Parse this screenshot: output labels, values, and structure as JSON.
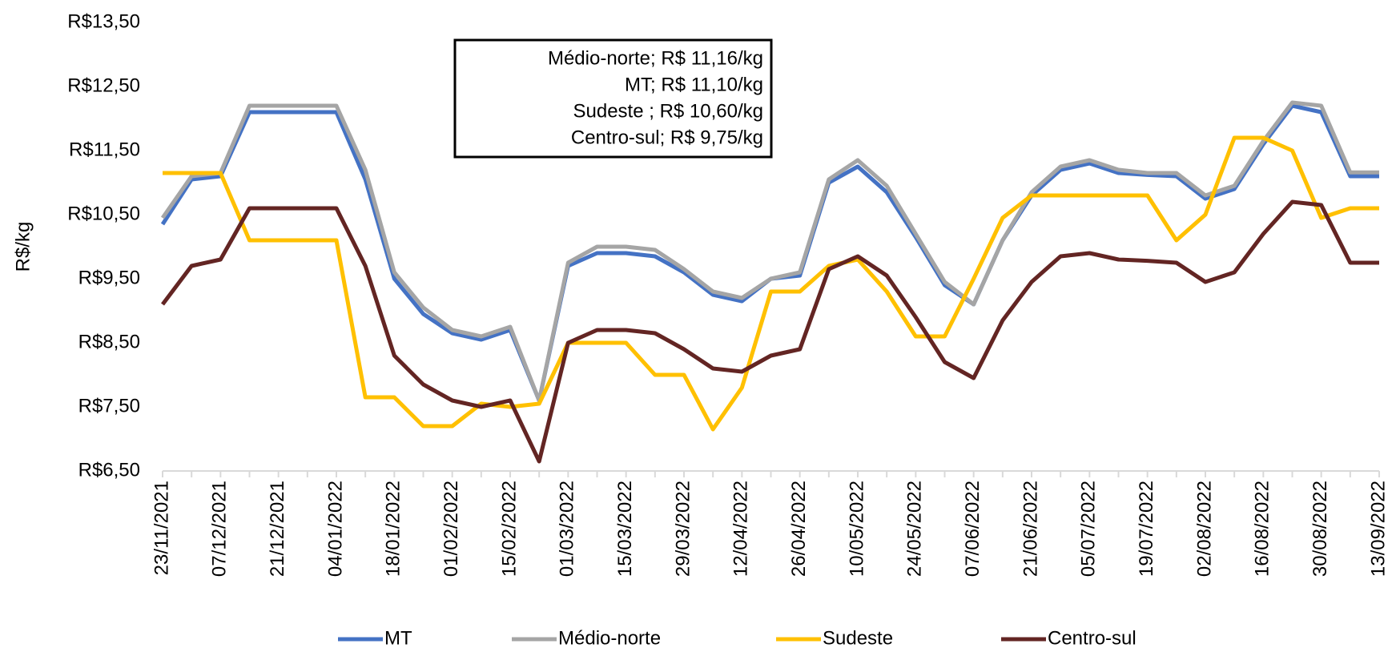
{
  "chart_data": {
    "type": "line",
    "y_label": "R$/kg",
    "annotation": [
      "Médio-norte; R$ 11,16/kg",
      "MT; R$ 11,10/kg",
      "Sudeste ; R$ 10,60/kg",
      "Centro-sul; R$ 9,75/kg"
    ],
    "categories": [
      "23/11/2021",
      null,
      "07/12/2021",
      null,
      "21/12/2021",
      null,
      "04/01/2022",
      null,
      "18/01/2022",
      null,
      "01/02/2022",
      null,
      "15/02/2022",
      null,
      "01/03/2022",
      null,
      "15/03/2022",
      null,
      "29/03/2022",
      null,
      "12/04/2022",
      null,
      "26/04/2022",
      null,
      "10/05/2022",
      null,
      "24/05/2022",
      null,
      "07/06/2022",
      null,
      "21/06/2022",
      null,
      "05/07/2022",
      null,
      "19/07/2022",
      null,
      "02/08/2022",
      null,
      "16/08/2022",
      null,
      "30/08/2022",
      null,
      "13/09/2022"
    ],
    "series": [
      {
        "name": "MT",
        "color": "#4472c4",
        "values": [
          10.35,
          11.05,
          11.1,
          12.1,
          12.1,
          12.1,
          12.1,
          11.05,
          9.5,
          8.95,
          8.65,
          8.55,
          8.7,
          7.6,
          9.7,
          9.9,
          9.9,
          9.85,
          9.6,
          9.25,
          9.15,
          9.5,
          9.55,
          11.0,
          11.25,
          10.85,
          10.15,
          9.4,
          9.1,
          10.1,
          10.8,
          11.2,
          11.3,
          11.15,
          11.12,
          11.1,
          10.75,
          10.9,
          11.6,
          12.2,
          12.1,
          11.1,
          11.1
        ]
      },
      {
        "name": "Médio-norte",
        "color": "#a5a5a5",
        "values": [
          10.45,
          11.1,
          11.15,
          12.2,
          12.2,
          12.2,
          12.2,
          11.2,
          9.6,
          9.05,
          8.7,
          8.6,
          8.75,
          7.6,
          9.75,
          10.0,
          10.0,
          9.95,
          9.65,
          9.3,
          9.2,
          9.5,
          9.6,
          11.05,
          11.35,
          10.95,
          10.2,
          9.45,
          9.1,
          10.1,
          10.85,
          11.25,
          11.35,
          11.2,
          11.15,
          11.15,
          10.8,
          10.95,
          11.65,
          12.25,
          12.2,
          11.16,
          11.16
        ]
      },
      {
        "name": "Sudeste",
        "color": "#ffc000",
        "values": [
          11.15,
          11.15,
          11.15,
          10.1,
          10.1,
          10.1,
          10.1,
          7.65,
          7.65,
          7.2,
          7.2,
          7.55,
          7.5,
          7.55,
          8.5,
          8.5,
          8.5,
          8.0,
          8.0,
          7.15,
          7.8,
          9.3,
          9.3,
          9.7,
          9.8,
          9.3,
          8.6,
          8.6,
          9.5,
          10.45,
          10.8,
          10.8,
          10.8,
          10.8,
          10.8,
          10.1,
          10.5,
          11.7,
          11.7,
          11.5,
          10.45,
          10.6,
          10.6
        ]
      },
      {
        "name": "Centro-sul",
        "color": "#632523",
        "values": [
          9.1,
          9.7,
          9.8,
          10.6,
          10.6,
          10.6,
          10.6,
          9.7,
          8.3,
          7.85,
          7.6,
          7.5,
          7.6,
          6.65,
          8.5,
          8.7,
          8.7,
          8.65,
          8.4,
          8.1,
          8.05,
          8.3,
          8.4,
          9.65,
          9.85,
          9.55,
          8.9,
          8.2,
          7.95,
          8.85,
          9.45,
          9.85,
          9.9,
          9.8,
          9.78,
          9.75,
          9.45,
          9.6,
          10.2,
          10.7,
          10.65,
          9.75,
          9.75
        ]
      }
    ],
    "ylim": [
      6.5,
      13.5
    ],
    "yticks": [
      {
        "value": 6.5,
        "label": "R$6,50"
      },
      {
        "value": 7.5,
        "label": "R$7,50"
      },
      {
        "value": 8.5,
        "label": "R$8,50"
      },
      {
        "value": 9.5,
        "label": "R$9,50"
      },
      {
        "value": 10.5,
        "label": "R$10,50"
      },
      {
        "value": 11.5,
        "label": "R$11,50"
      },
      {
        "value": 12.5,
        "label": "R$12,50"
      },
      {
        "value": 13.5,
        "label": "R$13,50"
      }
    ],
    "grid": false,
    "legend": "bottom"
  }
}
